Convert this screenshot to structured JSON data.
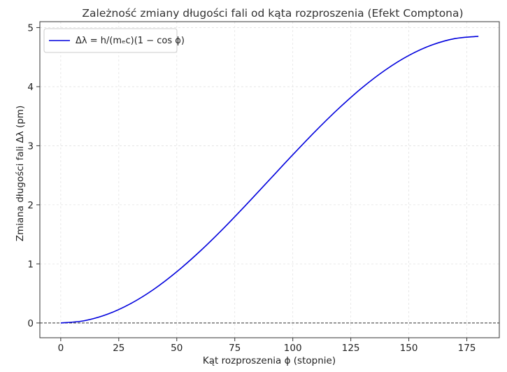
{
  "chart_data": {
    "type": "line",
    "title": "Zależność zmiany długości fali od kąta rozproszenia (Efekt Comptona)",
    "xlabel": "Kąt rozproszenia ϕ (stopnie)",
    "ylabel": "Zmiana długości fali Δλ (pm)",
    "xlim": [
      -9,
      189
    ],
    "ylim": [
      -0.25,
      5.1
    ],
    "x_ticks": [
      0,
      25,
      50,
      75,
      100,
      125,
      150,
      175
    ],
    "y_ticks": [
      0,
      1,
      2,
      3,
      4,
      5
    ],
    "grid": true,
    "legend_position": "top-left",
    "series": [
      {
        "name": "Δλ = h/(mₑc)(1 − cos ϕ)",
        "color": "#0000dd",
        "x": [
          0,
          10,
          20,
          30,
          40,
          50,
          60,
          70,
          80,
          90,
          100,
          110,
          120,
          130,
          140,
          150,
          160,
          170,
          180
        ],
        "y": [
          0,
          0.037,
          0.146,
          0.325,
          0.567,
          0.867,
          1.213,
          1.596,
          2.005,
          2.426,
          2.847,
          3.256,
          3.639,
          3.986,
          4.285,
          4.528,
          4.706,
          4.815,
          4.852
        ]
      }
    ],
    "reference_line": {
      "y": 0,
      "color": "#333333",
      "style": "dashed"
    }
  }
}
